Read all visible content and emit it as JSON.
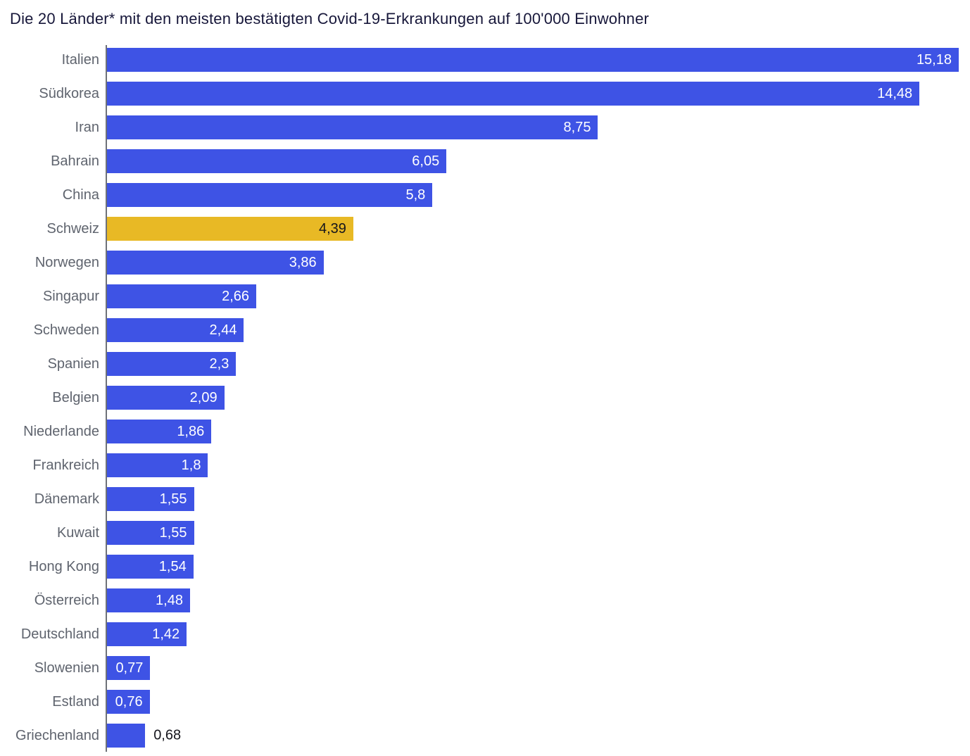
{
  "title": "Die 20 Länder* mit den meisten bestätigten Covid-19-Erkrankungen auf 100'000 Einwohner",
  "chart_data": {
    "type": "bar",
    "orientation": "horizontal",
    "title": "Die 20 Länder* mit den meisten bestätigten Covid-19-Erkrankungen auf 100'000 Einwohner",
    "xlabel": "",
    "ylabel": "",
    "xlim": [
      0,
      15.18
    ],
    "grid": false,
    "legend": "none",
    "value_label_format": "decimal-comma",
    "highlighted_category": "Schweiz",
    "bars": [
      {
        "label": "Italien",
        "value": 15.18,
        "display": "15,18"
      },
      {
        "label": "Südkorea",
        "value": 14.48,
        "display": "14,48"
      },
      {
        "label": "Iran",
        "value": 8.75,
        "display": "8,75"
      },
      {
        "label": "Bahrain",
        "value": 6.05,
        "display": "6,05"
      },
      {
        "label": "China",
        "value": 5.8,
        "display": "5,8"
      },
      {
        "label": "Schweiz",
        "value": 4.39,
        "display": "4,39",
        "highlight": true
      },
      {
        "label": "Norwegen",
        "value": 3.86,
        "display": "3,86"
      },
      {
        "label": "Singapur",
        "value": 2.66,
        "display": "2,66"
      },
      {
        "label": "Schweden",
        "value": 2.44,
        "display": "2,44"
      },
      {
        "label": "Spanien",
        "value": 2.3,
        "display": "2,3"
      },
      {
        "label": "Belgien",
        "value": 2.09,
        "display": "2,09"
      },
      {
        "label": "Niederlande",
        "value": 1.86,
        "display": "1,86"
      },
      {
        "label": "Frankreich",
        "value": 1.8,
        "display": "1,8"
      },
      {
        "label": "Dänemark",
        "value": 1.55,
        "display": "1,55"
      },
      {
        "label": "Kuwait",
        "value": 1.55,
        "display": "1,55"
      },
      {
        "label": "Hong Kong",
        "value": 1.54,
        "display": "1,54"
      },
      {
        "label": "Österreich",
        "value": 1.48,
        "display": "1,48"
      },
      {
        "label": "Deutschland",
        "value": 1.42,
        "display": "1,42"
      },
      {
        "label": "Slowenien",
        "value": 0.77,
        "display": "0,77"
      },
      {
        "label": "Estland",
        "value": 0.76,
        "display": "0,76"
      },
      {
        "label": "Griechenland",
        "value": 0.68,
        "display": "0,68",
        "value_outside": true
      }
    ],
    "colors": {
      "bar": "#3e53e5",
      "highlight": "#e8b925",
      "value_inside": "#ffffff",
      "value_on_highlight": "#15151c",
      "value_outside": "#15151c",
      "category_label": "#5f646e",
      "axis_line": "#6e7178",
      "title": "#17173a",
      "background": "#ffffff"
    }
  }
}
